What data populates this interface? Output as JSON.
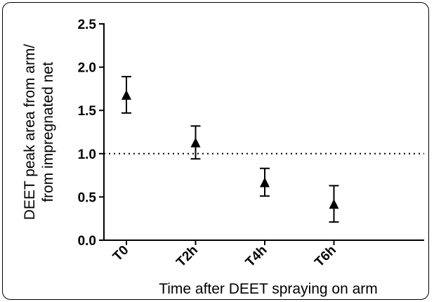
{
  "chart_data": {
    "type": "scatter",
    "title": "",
    "xlabel": "Time after DEET spraying on arm",
    "ylabel_lines": [
      "DEET peak area from arm/",
      "from impregnated net"
    ],
    "categories": [
      "T0",
      "T2h",
      "T4h",
      "T6h"
    ],
    "series": [
      {
        "marker": "triangle",
        "color": "#000000",
        "values": [
          1.68,
          1.13,
          0.67,
          0.42
        ],
        "error_low": [
          1.47,
          0.94,
          0.51,
          0.21
        ],
        "error_high": [
          1.89,
          1.32,
          0.83,
          0.63
        ]
      }
    ],
    "reference_line": {
      "y": 1.0,
      "style": "dotted"
    },
    "ylim": [
      0,
      2.5
    ],
    "yticks": [
      "0.0",
      "0.5",
      "1.0",
      "1.5",
      "2.0",
      "2.5"
    ],
    "grid": false,
    "legend": "none"
  }
}
